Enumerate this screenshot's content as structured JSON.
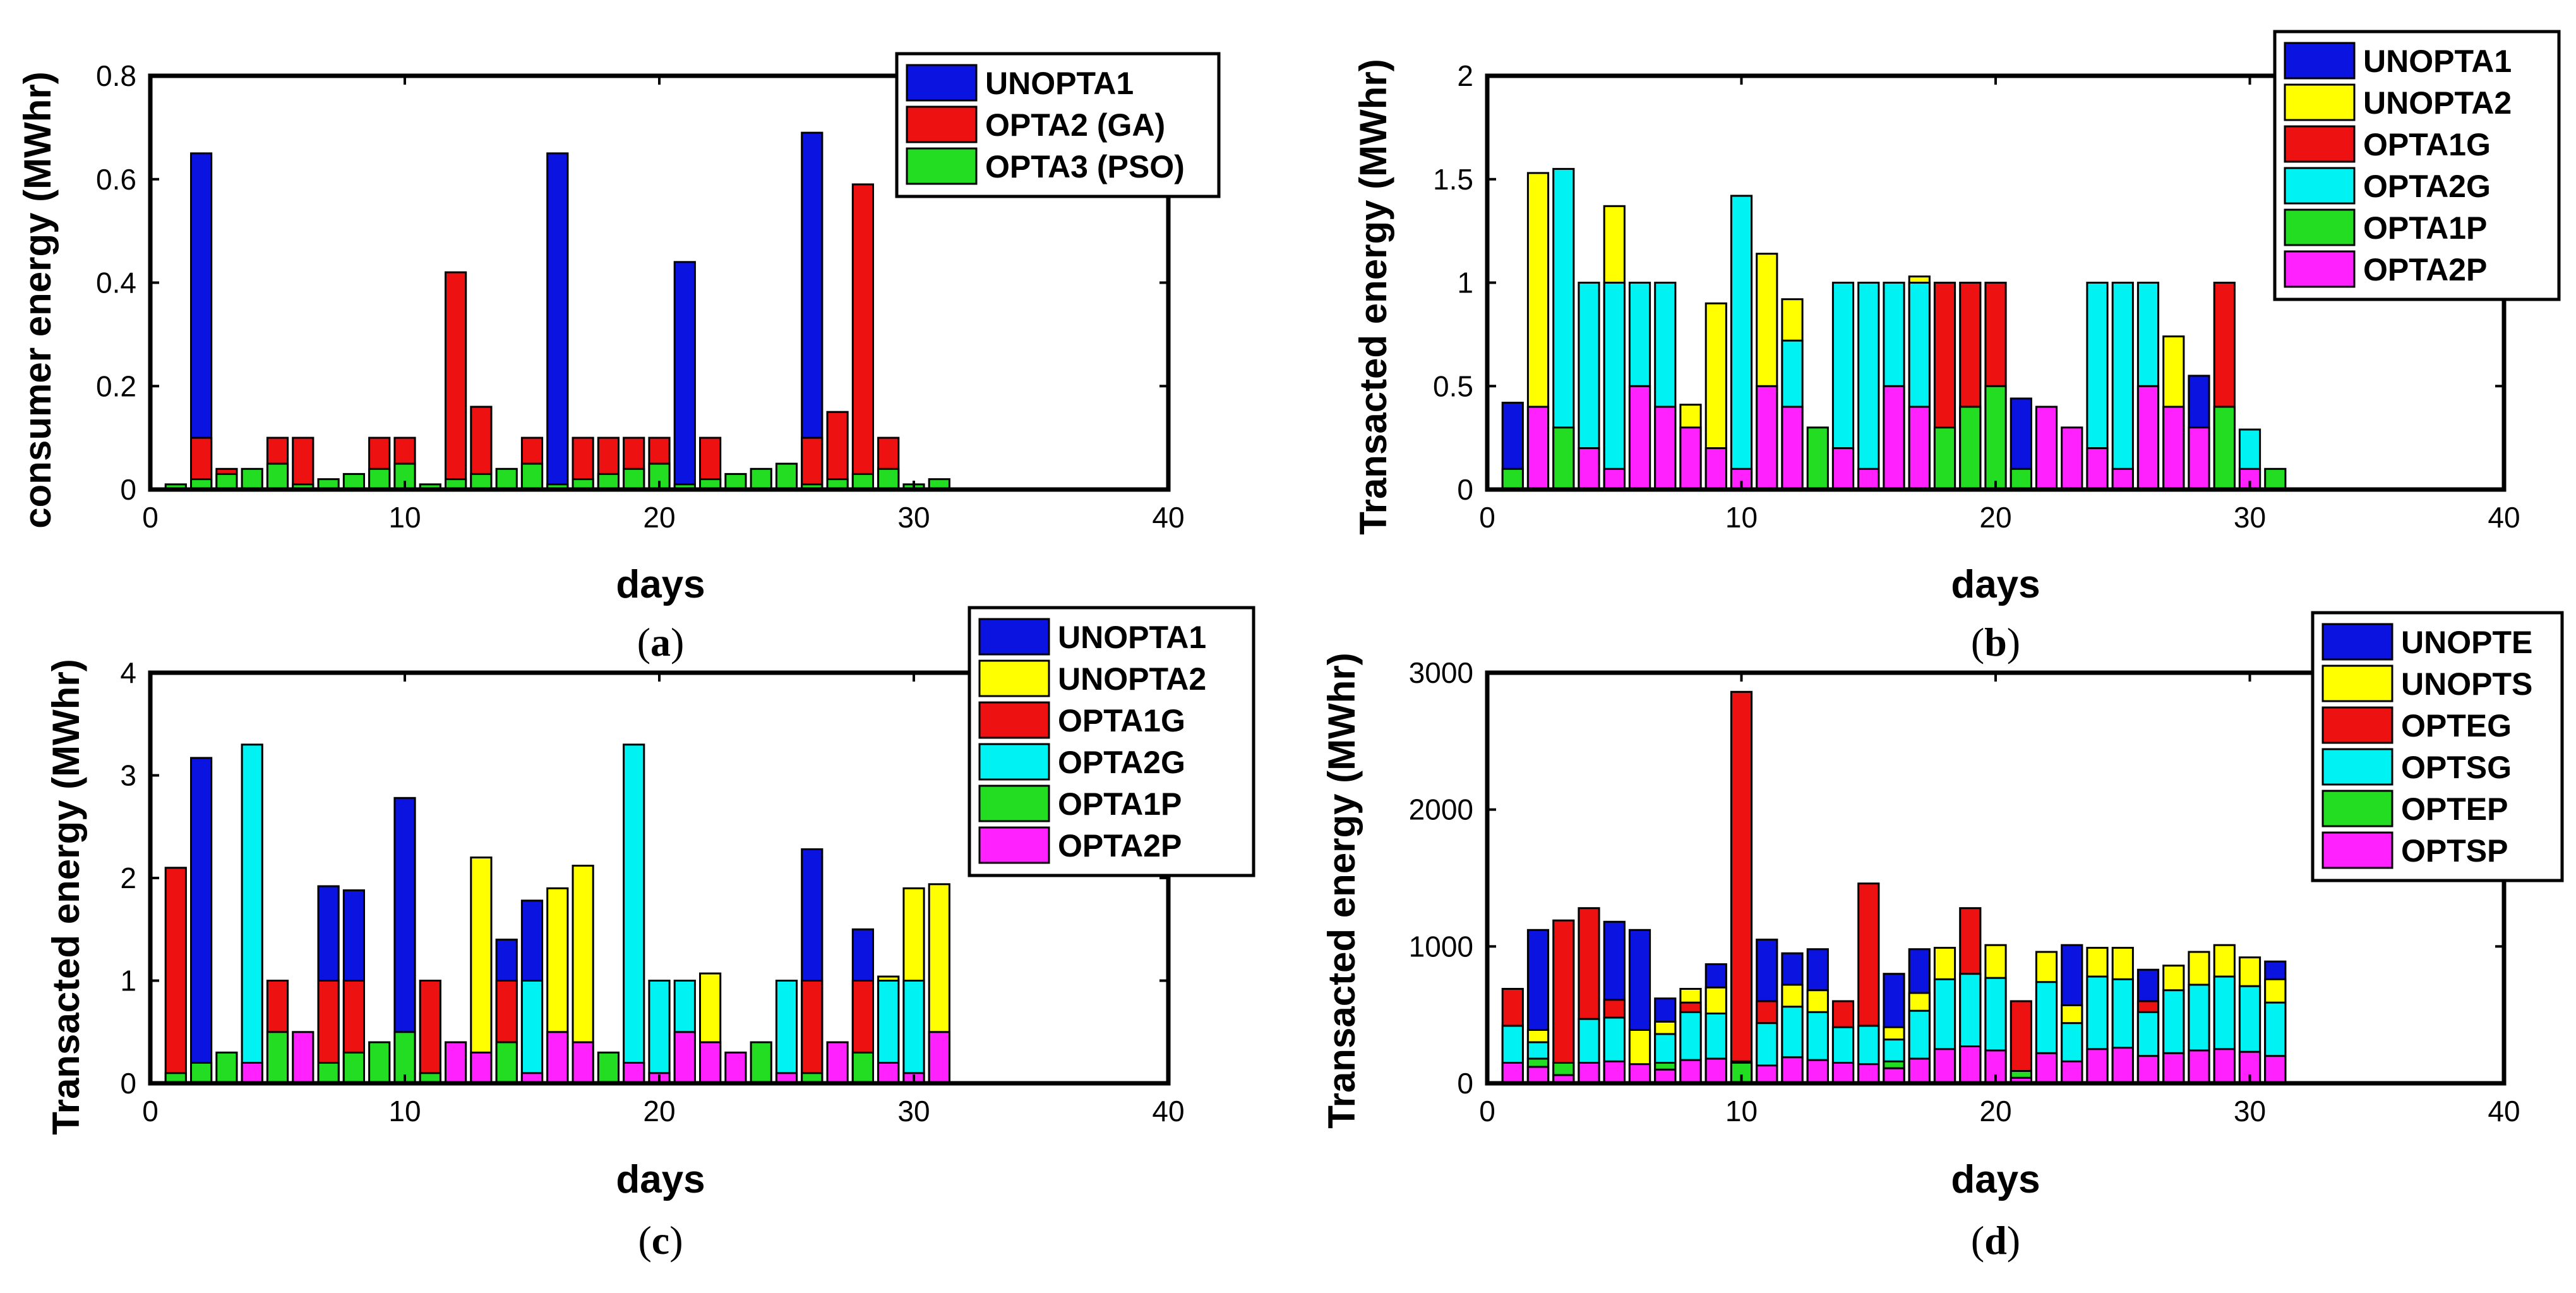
{
  "chart_data": [
    {
      "id": "a",
      "type": "bar",
      "caption_open": "(",
      "caption_letter": "a",
      "caption_close": ")",
      "xlabel": "days",
      "ylabel": "consumer energy (MWhr)",
      "xlim": [
        0,
        40
      ],
      "ylim": [
        0,
        0.8
      ],
      "xticks": [
        0,
        10,
        20,
        30,
        40
      ],
      "yticks": [
        0,
        0.2,
        0.4,
        0.6,
        0.8
      ],
      "xtick_labels": [
        "0",
        "10",
        "20",
        "30",
        "40"
      ],
      "ytick_labels": [
        "0",
        "0.2",
        "0.4",
        "0.6",
        "0.8"
      ],
      "legend_position": "top-right",
      "x": [
        1,
        2,
        3,
        4,
        5,
        6,
        7,
        8,
        9,
        10,
        11,
        12,
        13,
        14,
        15,
        16,
        17,
        18,
        19,
        20,
        21,
        22,
        23,
        24,
        25,
        26,
        27,
        28,
        29,
        30,
        31
      ],
      "series": [
        {
          "name": "UNOPTA1",
          "color": "#0b13e0",
          "values": [
            0,
            0.65,
            0,
            0,
            0,
            0,
            0,
            0,
            0,
            0,
            0,
            0,
            0,
            0,
            0,
            0.65,
            0,
            0,
            0,
            0,
            0.44,
            0,
            0,
            0,
            0,
            0.69,
            0,
            0,
            0,
            0,
            0
          ]
        },
        {
          "name": "OPTA2 (GA)",
          "color": "#ee1111",
          "values": [
            0,
            0.1,
            0.04,
            0,
            0.1,
            0.1,
            0,
            0,
            0.1,
            0.1,
            0,
            0.42,
            0.16,
            0,
            0.1,
            0,
            0.1,
            0.1,
            0.1,
            0.1,
            0,
            0.1,
            0,
            0,
            0,
            0.1,
            0.15,
            0.59,
            0.1,
            0,
            0
          ]
        },
        {
          "name": "OPTA3 (PSO)",
          "color": "#22dd22",
          "values": [
            0.01,
            0.02,
            0.03,
            0.04,
            0.05,
            0.01,
            0.02,
            0.03,
            0.04,
            0.05,
            0.01,
            0.02,
            0.03,
            0.04,
            0.05,
            0.01,
            0.02,
            0.03,
            0.04,
            0.05,
            0.01,
            0.02,
            0.03,
            0.04,
            0.05,
            0.01,
            0.02,
            0.03,
            0.04,
            0.01,
            0.02
          ]
        }
      ]
    },
    {
      "id": "b",
      "type": "bar",
      "caption_open": "(",
      "caption_letter": "b",
      "caption_close": ")",
      "xlabel": "days",
      "ylabel": "Transacted energy (MWhr)",
      "xlim": [
        0,
        40
      ],
      "ylim": [
        0,
        2
      ],
      "xticks": [
        0,
        10,
        20,
        30,
        40
      ],
      "yticks": [
        0,
        0.5,
        1,
        1.5,
        2
      ],
      "xtick_labels": [
        "0",
        "10",
        "20",
        "30",
        "40"
      ],
      "ytick_labels": [
        "0",
        "0.5",
        "1",
        "1.5",
        "2"
      ],
      "legend_position": "top-right",
      "x": [
        1,
        2,
        3,
        4,
        5,
        6,
        7,
        8,
        9,
        10,
        11,
        12,
        13,
        14,
        15,
        16,
        17,
        18,
        19,
        20,
        21,
        22,
        23,
        24,
        25,
        26,
        27,
        28,
        29,
        30,
        31
      ],
      "series": [
        {
          "name": "UNOPTA1",
          "color": "#0b13e0",
          "values": [
            0.42,
            0,
            0,
            0,
            0,
            0,
            0,
            0,
            0,
            0,
            0,
            0,
            0,
            0,
            0,
            0,
            0,
            0,
            0,
            0,
            0.44,
            0,
            0,
            0,
            0,
            0,
            0,
            0.55,
            0,
            0,
            0
          ]
        },
        {
          "name": "UNOPTA2",
          "color": "#ffff00",
          "values": [
            0,
            1.53,
            0,
            0,
            1.37,
            0,
            0,
            0.41,
            0.9,
            0,
            1.14,
            0.92,
            0,
            0,
            0,
            0,
            1.03,
            0,
            0,
            0,
            0,
            0,
            0,
            0,
            0,
            0,
            0.74,
            0,
            0,
            0,
            0
          ]
        },
        {
          "name": "OPTA1G",
          "color": "#ee1111",
          "values": [
            0,
            0,
            0,
            0,
            0,
            0,
            0,
            0,
            0,
            0,
            0,
            0,
            0,
            0,
            0,
            0,
            0,
            1,
            1,
            1,
            0,
            0,
            0,
            0,
            0,
            0,
            0,
            0,
            1,
            0,
            0
          ]
        },
        {
          "name": "OPTA2G",
          "color": "#00f2f2",
          "values": [
            0,
            0,
            1.55,
            1,
            1,
            1,
            1,
            0,
            0,
            1.42,
            0,
            0.72,
            0,
            1,
            1,
            1,
            1,
            0,
            0,
            0,
            0,
            0,
            0,
            1,
            1,
            1,
            0,
            0,
            0,
            0.29,
            0
          ]
        },
        {
          "name": "OPTA1P",
          "color": "#22dd22",
          "values": [
            0.1,
            0,
            0.3,
            0,
            0,
            0,
            0,
            0,
            0,
            0,
            0,
            0,
            0.3,
            0,
            0,
            0,
            0,
            0.3,
            0.4,
            0.5,
            0.1,
            0,
            0,
            0,
            0,
            0,
            0,
            0,
            0.4,
            0,
            0.1
          ]
        },
        {
          "name": "OPTA2P",
          "color": "#ff22ff",
          "values": [
            0,
            0.4,
            0,
            0.2,
            0.1,
            0.5,
            0.4,
            0.3,
            0.2,
            0.1,
            0.5,
            0.4,
            0,
            0.2,
            0.1,
            0.5,
            0.4,
            0,
            0,
            0,
            0,
            0.4,
            0.3,
            0.2,
            0.1,
            0.5,
            0.4,
            0.3,
            0,
            0.1,
            0
          ]
        }
      ]
    },
    {
      "id": "c",
      "type": "bar",
      "caption_open": "(",
      "caption_letter": "c",
      "caption_close": ")",
      "xlabel": "days",
      "ylabel": "Transacted energy (MWhr)",
      "xlim": [
        0,
        40
      ],
      "ylim": [
        0,
        4
      ],
      "xticks": [
        0,
        10,
        20,
        30,
        40
      ],
      "yticks": [
        0,
        1,
        2,
        3,
        4
      ],
      "xtick_labels": [
        "0",
        "10",
        "20",
        "30",
        "40"
      ],
      "ytick_labels": [
        "0",
        "1",
        "2",
        "3",
        "4"
      ],
      "legend_position": "top-right",
      "x": [
        1,
        2,
        3,
        4,
        5,
        6,
        7,
        8,
        9,
        10,
        11,
        12,
        13,
        14,
        15,
        16,
        17,
        18,
        19,
        20,
        21,
        22,
        23,
        24,
        25,
        26,
        27,
        28,
        29,
        30,
        31
      ],
      "series": [
        {
          "name": "UNOPTA1",
          "color": "#0b13e0",
          "values": [
            0,
            3.17,
            0,
            0,
            0,
            0,
            1.92,
            1.88,
            0,
            2.78,
            0,
            0,
            0,
            1.4,
            1.78,
            0,
            0,
            0,
            0,
            0,
            0,
            0,
            0,
            0,
            0,
            2.28,
            0,
            1.5,
            0,
            0,
            0
          ]
        },
        {
          "name": "UNOPTA2",
          "color": "#ffff00",
          "values": [
            0,
            0,
            0,
            0,
            0,
            0,
            0,
            0,
            0,
            0,
            0,
            0,
            2.2,
            0,
            0,
            1.9,
            2.12,
            0,
            0,
            0,
            0,
            1.07,
            0,
            0,
            0,
            0,
            0,
            0,
            1.04,
            1.9,
            1.94
          ]
        },
        {
          "name": "OPTA1G",
          "color": "#ee1111",
          "values": [
            2.1,
            0,
            0,
            0,
            1,
            0,
            1,
            1,
            0,
            0,
            1,
            0,
            0,
            1,
            0,
            0,
            0,
            0,
            0,
            0,
            0,
            0,
            0,
            0,
            0,
            1,
            0,
            1,
            0,
            0,
            0
          ]
        },
        {
          "name": "OPTA2G",
          "color": "#00f2f2",
          "values": [
            0,
            0,
            0,
            3.3,
            0,
            0,
            0,
            0,
            0,
            0,
            0,
            0,
            0,
            0,
            1,
            0,
            0,
            0,
            3.3,
            1,
            1,
            0,
            0,
            0,
            1,
            0,
            0,
            0,
            1,
            1,
            0
          ]
        },
        {
          "name": "OPTA1P",
          "color": "#22dd22",
          "values": [
            0.1,
            0.2,
            0.3,
            0,
            0.5,
            0,
            0.2,
            0.3,
            0.4,
            0.5,
            0.1,
            0,
            0,
            0.4,
            0,
            0,
            0,
            0.3,
            0,
            0,
            0,
            0,
            0,
            0.4,
            0,
            0.1,
            0,
            0.3,
            0,
            0,
            0
          ]
        },
        {
          "name": "OPTA2P",
          "color": "#ff22ff",
          "values": [
            0,
            0,
            0,
            0.2,
            0,
            0.5,
            0,
            0,
            0,
            0,
            0,
            0.4,
            0.3,
            0,
            0.1,
            0.5,
            0.4,
            0,
            0.2,
            0.1,
            0.5,
            0.4,
            0.3,
            0,
            0.1,
            0,
            0.4,
            0,
            0.2,
            0.1,
            0.5
          ]
        }
      ]
    },
    {
      "id": "d",
      "type": "bar",
      "caption_open": "(",
      "caption_letter": "d",
      "caption_close": ")",
      "xlabel": "days",
      "ylabel": "Transacted energy (MWhr)",
      "xlim": [
        0,
        40
      ],
      "ylim": [
        0,
        3000
      ],
      "xticks": [
        0,
        10,
        20,
        30,
        40
      ],
      "yticks": [
        0,
        1000,
        2000,
        3000
      ],
      "xtick_labels": [
        "0",
        "10",
        "20",
        "30",
        "40"
      ],
      "ytick_labels": [
        "0",
        "1000",
        "2000",
        "3000"
      ],
      "legend_position": "top-right",
      "x": [
        1,
        2,
        3,
        4,
        5,
        6,
        7,
        8,
        9,
        10,
        11,
        12,
        13,
        14,
        15,
        16,
        17,
        18,
        19,
        20,
        21,
        22,
        23,
        24,
        25,
        26,
        27,
        28,
        29,
        30,
        31
      ],
      "series": [
        {
          "name": "UNOPTE",
          "color": "#0b13e0",
          "values": [
            0,
            1120,
            0,
            0,
            1180,
            1120,
            620,
            0,
            870,
            0,
            1050,
            950,
            980,
            0,
            0,
            800,
            980,
            0,
            0,
            0,
            0,
            0,
            1010,
            0,
            0,
            830,
            0,
            0,
            0,
            0,
            890
          ]
        },
        {
          "name": "UNOPTS",
          "color": "#ffff00",
          "values": [
            0,
            390,
            0,
            0,
            0,
            390,
            450,
            690,
            700,
            0,
            0,
            720,
            680,
            0,
            0,
            410,
            660,
            990,
            0,
            1010,
            0,
            960,
            570,
            990,
            990,
            0,
            860,
            960,
            1010,
            920,
            760
          ]
        },
        {
          "name": "OPTEG",
          "color": "#ee1111",
          "values": [
            690,
            0,
            1190,
            1280,
            610,
            0,
            0,
            590,
            0,
            2860,
            600,
            0,
            0,
            600,
            1460,
            0,
            0,
            0,
            1280,
            0,
            600,
            0,
            0,
            0,
            0,
            600,
            0,
            0,
            0,
            0,
            0
          ]
        },
        {
          "name": "OPTSG",
          "color": "#00f2f2",
          "values": [
            420,
            300,
            0,
            470,
            480,
            0,
            360,
            520,
            510,
            0,
            440,
            560,
            520,
            410,
            420,
            320,
            530,
            760,
            800,
            770,
            0,
            740,
            440,
            780,
            760,
            520,
            680,
            720,
            780,
            710,
            590
          ]
        },
        {
          "name": "OPTEP",
          "color": "#22dd22",
          "values": [
            0,
            180,
            150,
            0,
            0,
            0,
            150,
            0,
            0,
            150,
            0,
            0,
            0,
            0,
            0,
            160,
            0,
            0,
            0,
            0,
            90,
            0,
            0,
            0,
            0,
            0,
            0,
            0,
            0,
            0,
            0
          ]
        },
        {
          "name": "OPTSP",
          "color": "#ff22ff",
          "values": [
            150,
            120,
            60,
            150,
            160,
            140,
            100,
            170,
            180,
            160,
            130,
            190,
            170,
            150,
            140,
            110,
            180,
            250,
            270,
            240,
            40,
            220,
            160,
            250,
            260,
            200,
            220,
            240,
            250,
            230,
            200
          ]
        }
      ]
    }
  ]
}
